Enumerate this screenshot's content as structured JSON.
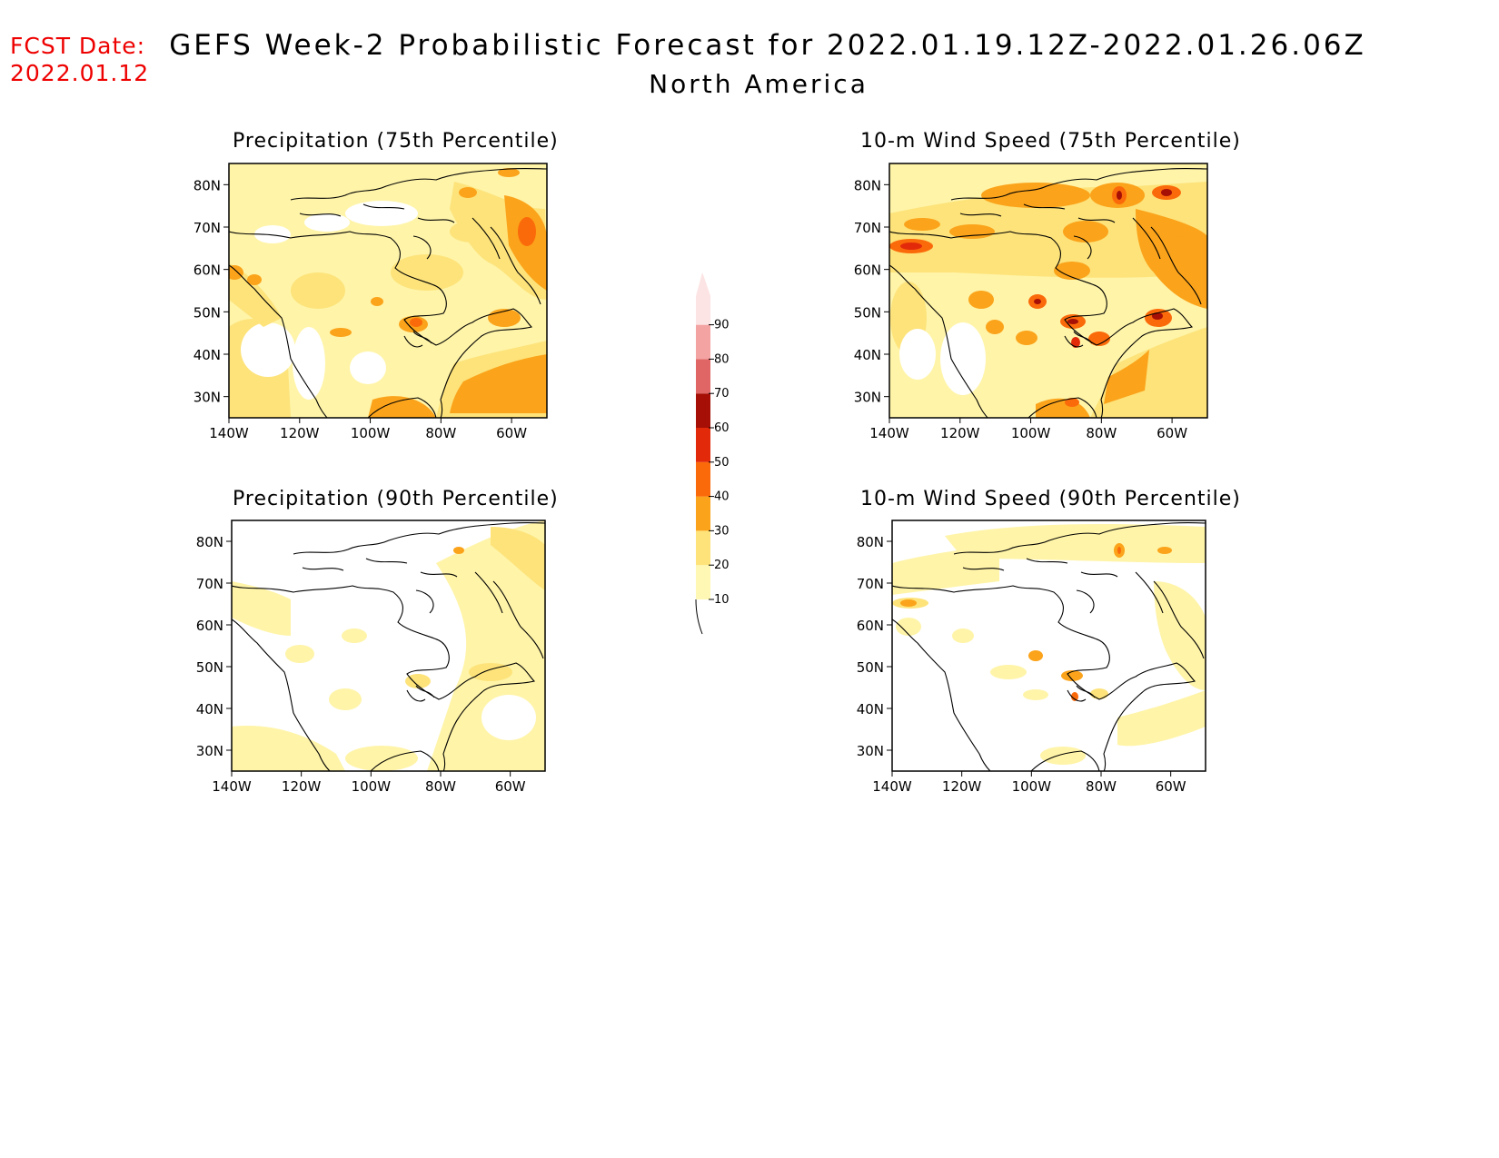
{
  "fcst": {
    "label": "FCST Date:",
    "date": "2022.01.12"
  },
  "header": {
    "title": "GEFS Week-2 Probabilistic Forecast for 2022.01.19.12Z-2022.01.26.06Z",
    "subtitle": "North America"
  },
  "axes": {
    "lon_labels": [
      "140W",
      "120W",
      "100W",
      "80W",
      "60W"
    ],
    "lat_labels": [
      "80N",
      "70N",
      "60N",
      "50N",
      "40N",
      "30N"
    ]
  },
  "colorbar": {
    "levels": [
      "10",
      "20",
      "30",
      "40",
      "50",
      "60",
      "70",
      "80",
      "90"
    ],
    "colors": [
      "#fff8b4",
      "#fde37a",
      "#fba31a",
      "#fb6a0a",
      "#e22a0a",
      "#a50f06",
      "#e06666",
      "#f4a3a3",
      "#fde4e4"
    ]
  },
  "panels": [
    {
      "title": "Precipitation (75th Percentile)"
    },
    {
      "title": "10-m Wind Speed (75th Percentile)"
    },
    {
      "title": "Precipitation (90th Percentile)"
    },
    {
      "title": "10-m Wind Speed (90th Percentile)"
    }
  ]
}
